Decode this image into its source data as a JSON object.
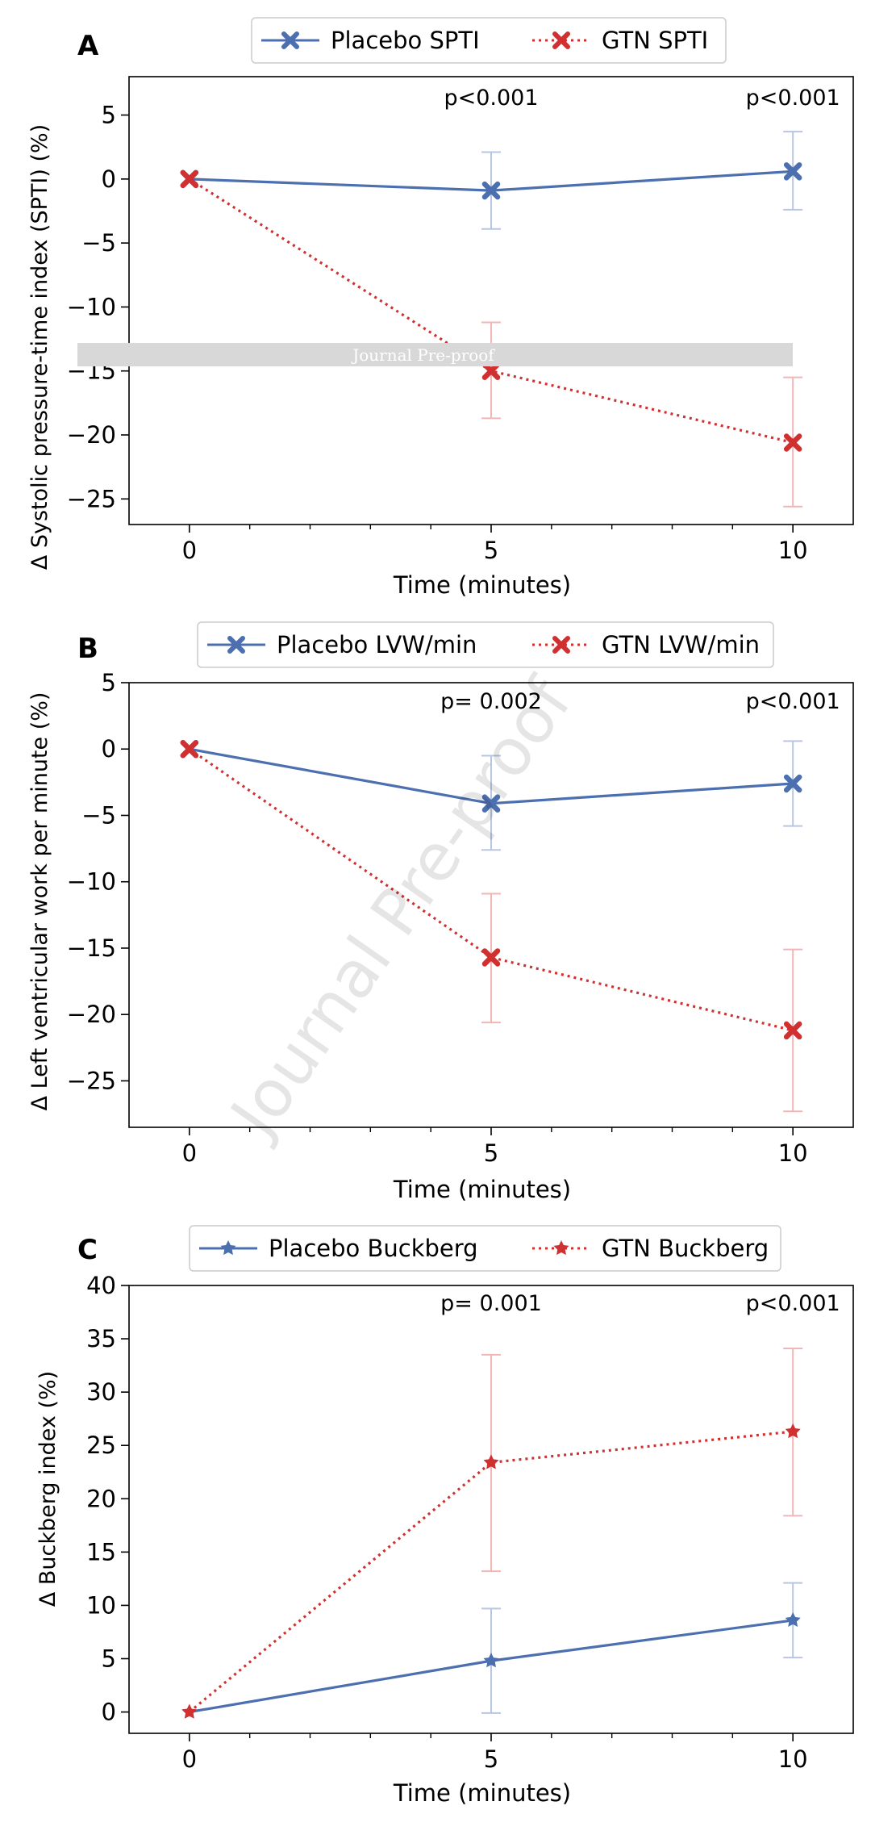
{
  "watermarks": {
    "banner": "Journal Pre-proof",
    "diagonal": "Journal Pre-proof"
  },
  "colors": {
    "placebo": "#4c6fb0",
    "gtn": "#d03030",
    "placebo_error": "#b8c6e3",
    "gtn_error": "#f2b6b6",
    "banner_bg": "#d8d8d8"
  },
  "chart_data": [
    {
      "type": "line",
      "panel_label": "A",
      "xlabel": "Time (minutes)",
      "ylabel": "Δ Systolic pressure-time index (SPTI) (%)",
      "x": [
        0,
        5,
        10
      ],
      "xlim": [
        -1,
        11
      ],
      "ylim": [
        -27,
        8
      ],
      "x_ticks": [
        0,
        5,
        10
      ],
      "x_tick_labels": [
        "0",
        "5",
        "10"
      ],
      "x_minor_ticks": [
        1,
        2,
        3,
        4,
        6,
        7,
        8,
        9
      ],
      "y_ticks": [
        5,
        0,
        -5,
        -10,
        -15,
        -20,
        -25
      ],
      "y_tick_labels": [
        "5",
        "0",
        "−5",
        "−10",
        "−15",
        "−20",
        "−25"
      ],
      "legend": {
        "placement": "top-center",
        "entries": [
          "Placebo SPTI",
          "GTN SPTI"
        ]
      },
      "annotations": [
        {
          "x": 5,
          "text": "p<0.001"
        },
        {
          "x": 10,
          "text": "p<0.001"
        }
      ],
      "series": [
        {
          "name": "Placebo SPTI",
          "marker": "x",
          "style": "solid",
          "values": [
            0,
            -0.9,
            0.6
          ],
          "err_low": [
            null,
            -3.9,
            -2.4
          ],
          "err_high": [
            null,
            2.1,
            3.7
          ]
        },
        {
          "name": "GTN SPTI",
          "marker": "x",
          "style": "dotted",
          "values": [
            0,
            -15,
            -20.6
          ],
          "err_low": [
            null,
            -18.7,
            -25.6
          ],
          "err_high": [
            null,
            -11.2,
            -15.5
          ]
        }
      ]
    },
    {
      "type": "line",
      "panel_label": "B",
      "xlabel": "Time (minutes)",
      "ylabel": "Δ Left ventricular work per minute (%)",
      "x": [
        0,
        5,
        10
      ],
      "xlim": [
        -1,
        11
      ],
      "ylim": [
        -28.5,
        5
      ],
      "x_ticks": [
        0,
        5,
        10
      ],
      "x_tick_labels": [
        "0",
        "5",
        "10"
      ],
      "x_minor_ticks": [
        1,
        2,
        3,
        4,
        6,
        7,
        8,
        9
      ],
      "y_ticks": [
        5,
        0,
        -5,
        -10,
        -15,
        -20,
        -25
      ],
      "y_tick_labels": [
        "5",
        "0",
        "−5",
        "−10",
        "−15",
        "−20",
        "−25"
      ],
      "legend": {
        "placement": "top-center",
        "entries": [
          "Placebo LVW/min",
          "GTN LVW/min"
        ]
      },
      "annotations": [
        {
          "x": 5,
          "text": "p= 0.002"
        },
        {
          "x": 10,
          "text": "p<0.001"
        }
      ],
      "series": [
        {
          "name": "Placebo LVW/min",
          "marker": "x",
          "style": "solid",
          "values": [
            0,
            -4.1,
            -2.6
          ],
          "err_low": [
            null,
            -7.6,
            -5.8
          ],
          "err_high": [
            null,
            -0.5,
            0.6
          ]
        },
        {
          "name": "GTN LVW/min",
          "marker": "x",
          "style": "dotted",
          "values": [
            0,
            -15.7,
            -21.2
          ],
          "err_low": [
            null,
            -20.6,
            -27.3
          ],
          "err_high": [
            null,
            -10.9,
            -15.1
          ]
        }
      ]
    },
    {
      "type": "line",
      "panel_label": "C",
      "xlabel": "Time (minutes)",
      "ylabel": "Δ Buckberg index (%)",
      "x": [
        0,
        5,
        10
      ],
      "xlim": [
        -1,
        11
      ],
      "ylim": [
        -2,
        40
      ],
      "x_ticks": [
        0,
        5,
        10
      ],
      "x_tick_labels": [
        "0",
        "5",
        "10"
      ],
      "x_minor_ticks": [
        1,
        2,
        3,
        4,
        6,
        7,
        8,
        9
      ],
      "y_ticks": [
        40,
        35,
        30,
        25,
        20,
        15,
        10,
        5,
        0
      ],
      "y_tick_labels": [
        "40",
        "35",
        "30",
        "25",
        "20",
        "15",
        "10",
        "5",
        "0"
      ],
      "legend": {
        "placement": "top-center",
        "entries": [
          "Placebo Buckberg",
          "GTN Buckberg"
        ]
      },
      "annotations": [
        {
          "x": 5,
          "text": "p= 0.001"
        },
        {
          "x": 10,
          "text": "p<0.001"
        }
      ],
      "series": [
        {
          "name": "Placebo Buckberg",
          "marker": "star",
          "style": "solid",
          "values": [
            0,
            4.8,
            8.6
          ],
          "err_low": [
            null,
            -0.1,
            5.1
          ],
          "err_high": [
            null,
            9.7,
            12.1
          ]
        },
        {
          "name": "GTN Buckberg",
          "marker": "star",
          "style": "dotted",
          "values": [
            0,
            23.4,
            26.3
          ],
          "err_low": [
            null,
            13.2,
            18.4
          ],
          "err_high": [
            null,
            33.5,
            34.1
          ]
        }
      ]
    }
  ]
}
